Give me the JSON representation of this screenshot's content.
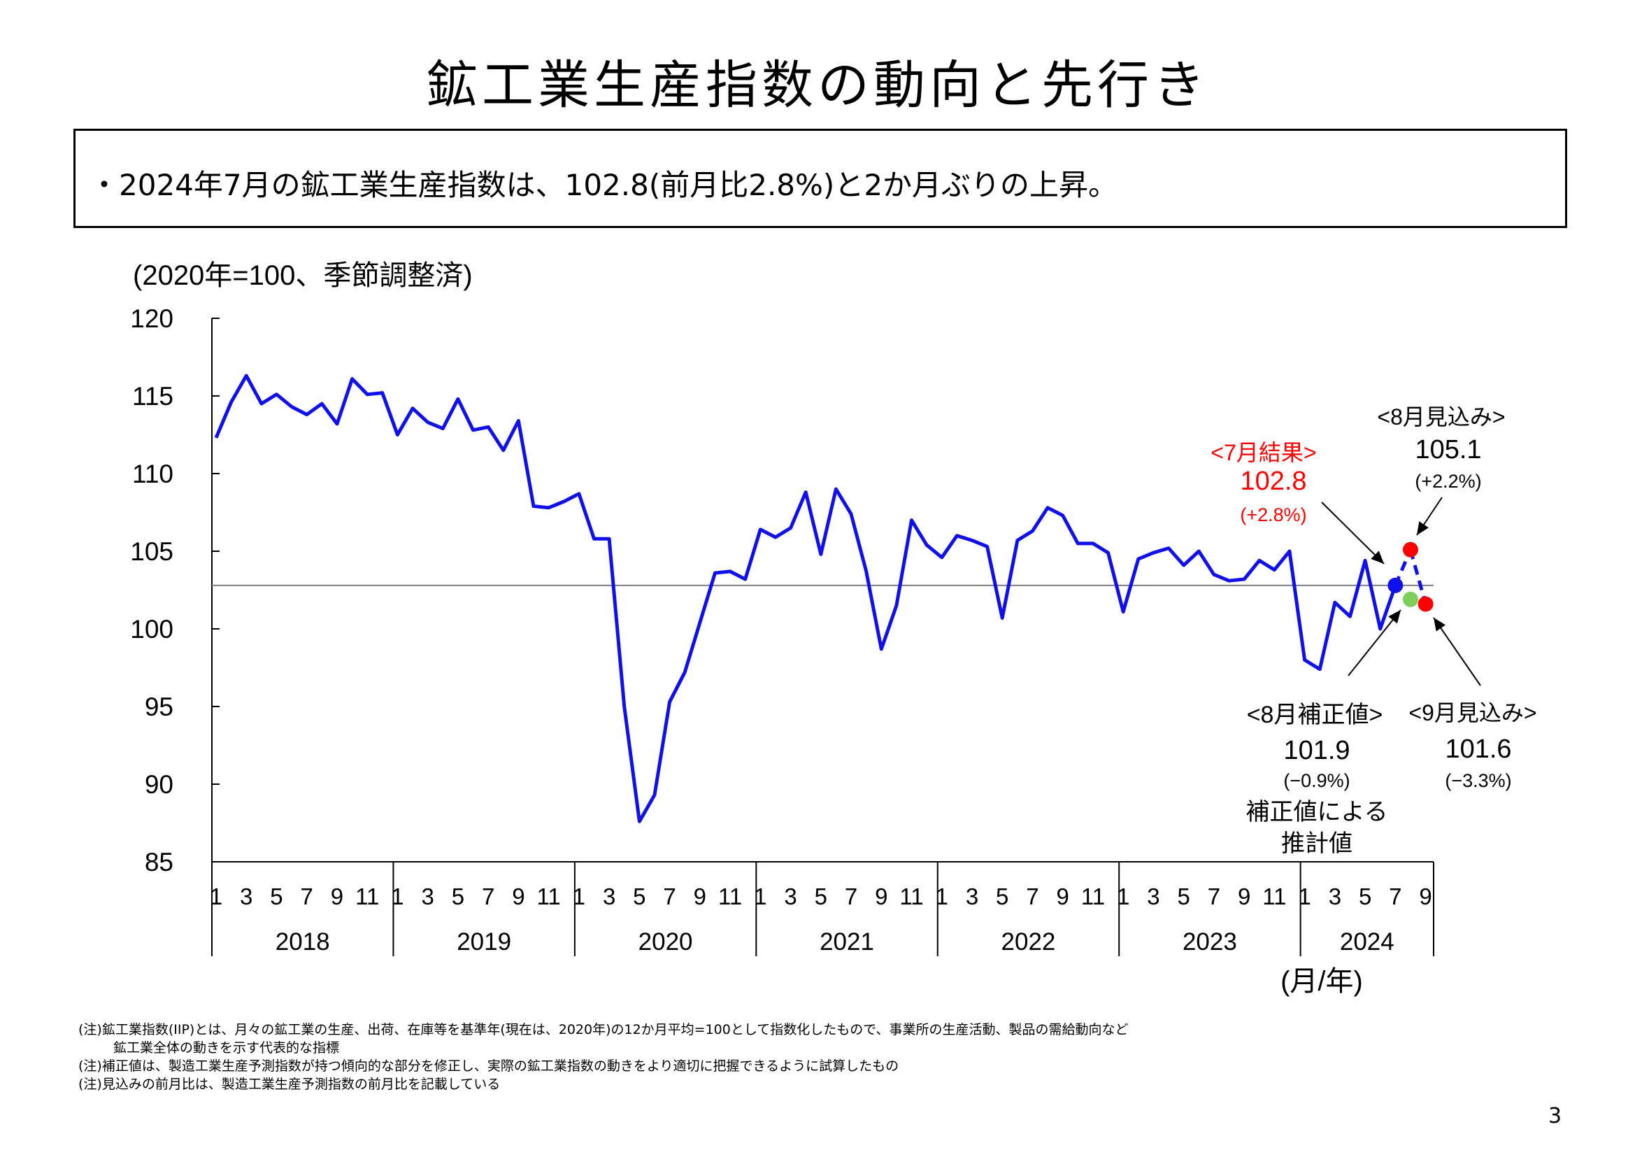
{
  "title": "鉱工業生産指数の動向と先行き",
  "summary": "・2024年7月の鉱工業生産指数は、102.8(前月比2.8%)と2か月ぶりの上昇。",
  "notes": [
    "(注)鉱工業指数(IIP)とは、月々の鉱工業の生産、出荷、在庫等を基準年(現在は、2020年)の12か月平均=100として指数化したもので、事業所の生産活動、製品の需給動向など",
    "鉱工業全体の動きを示す代表的な指標",
    "(注)補正値は、製造工業生産予測指数が持つ傾向的な部分を修正し、実際の鉱工業指数の動きをより適切に把握できるように試算したもの",
    "(注)見込みの前月比は、製造工業生産予測指数の前月比を記載している"
  ],
  "page_number": "3",
  "colors": {
    "line": "#1010ee",
    "red": "#ff0000",
    "green": "#7ccf5a",
    "blue_dot": "#1010ee",
    "ref_line": "#808080"
  },
  "chart_data": {
    "type": "line",
    "unit_label": "(2020年=100、季節調整済)",
    "x_axis_label": "(月/年)",
    "ylim": [
      85,
      120
    ],
    "yticks": [
      85,
      90,
      95,
      100,
      105,
      110,
      115,
      120
    ],
    "reference_value": 102.8,
    "start": "2018-01",
    "years": [
      "2018",
      "2019",
      "2020",
      "2021",
      "2022",
      "2023",
      "2024"
    ],
    "month_tick_labels": [
      "1",
      "3",
      "5",
      "7",
      "9",
      "11"
    ],
    "month_tick_labels_2024": [
      "1",
      "3",
      "5",
      "7",
      "9"
    ],
    "series": [
      {
        "name": "鉱工業生産指数",
        "values": [
          112.3,
          114.6,
          116.3,
          114.5,
          115.1,
          114.3,
          113.8,
          114.5,
          113.2,
          116.1,
          115.1,
          115.2,
          112.5,
          114.2,
          113.3,
          112.9,
          114.8,
          112.8,
          113.0,
          111.5,
          113.4,
          107.9,
          107.8,
          108.2,
          108.7,
          105.8,
          105.8,
          95.0,
          87.6,
          89.3,
          95.3,
          97.2,
          100.4,
          103.6,
          103.7,
          103.2,
          106.4,
          105.9,
          106.5,
          108.8,
          104.8,
          109.0,
          107.4,
          103.7,
          98.7,
          101.5,
          107.0,
          105.4,
          104.6,
          106.0,
          105.7,
          105.3,
          100.7,
          105.7,
          106.3,
          107.8,
          107.3,
          105.5,
          105.5,
          104.9,
          101.1,
          104.5,
          104.9,
          105.2,
          104.1,
          105.0,
          103.5,
          103.1,
          103.2,
          104.4,
          103.8,
          105.0,
          98.0,
          97.4,
          101.7,
          100.8,
          104.4,
          100.0,
          102.8
        ]
      }
    ],
    "markers": [
      {
        "name": "7月結果",
        "month": "2024-07",
        "value": 102.8,
        "color": "blue"
      },
      {
        "name": "8月補正値",
        "month": "2024-08",
        "value": 101.9,
        "color": "green"
      },
      {
        "name": "8月見込み",
        "month": "2024-08",
        "value": 105.1,
        "color": "red"
      },
      {
        "name": "9月見込み",
        "month": "2024-09",
        "value": 101.6,
        "color": "red"
      }
    ],
    "annotations": {
      "july": {
        "label": "<7月結果>",
        "value": "102.8",
        "change": "(+2.8%)"
      },
      "aug_forecast": {
        "label": "<8月見込み>",
        "value": "105.1",
        "change": "(+2.2%)"
      },
      "aug_corrected": {
        "label": "<8月補正値>",
        "value": "101.9",
        "change": "(−0.9%)",
        "note_line1": "補正値による",
        "note_line2": "推計値"
      },
      "sep_forecast": {
        "label": "<9月見込み>",
        "value": "101.6",
        "change": "(−3.3%)"
      }
    }
  }
}
